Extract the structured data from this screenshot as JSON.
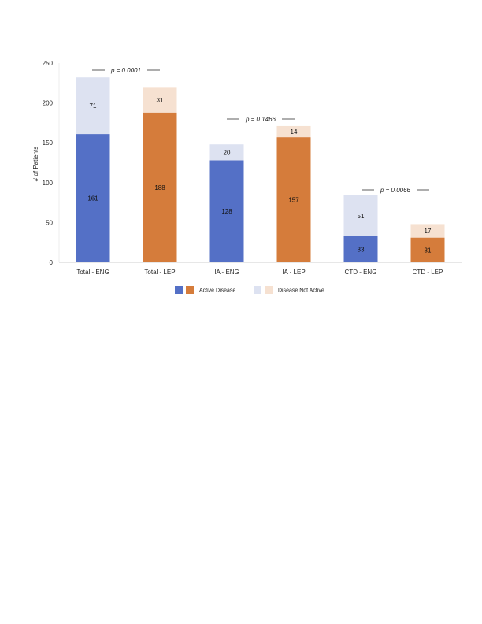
{
  "chart_data": {
    "type": "bar",
    "stacked": true,
    "categories": [
      "Total - ENG",
      "Total - LEP",
      "IA - ENG",
      "IA - LEP",
      "CTD - ENG",
      "CTD - LEP"
    ],
    "series": [
      {
        "name": "Active Disease",
        "values": [
          161,
          188,
          128,
          157,
          33,
          31
        ]
      },
      {
        "name": "Disease Not Active",
        "values": [
          71,
          31,
          20,
          14,
          51,
          17
        ]
      }
    ],
    "ylabel": "# of Patients",
    "ylim": [
      0,
      250
    ],
    "yticks": [
      0,
      50,
      100,
      150,
      200,
      250
    ],
    "grid": false,
    "legend_position": "bottom",
    "annotations": [
      {
        "text": "p = 0.0001",
        "between": [
          "Total - ENG",
          "Total - LEP"
        ]
      },
      {
        "text": "p = 0.1466",
        "between": [
          "IA - ENG",
          "IA - LEP"
        ]
      },
      {
        "text": "p = 0.0066",
        "between": [
          "CTD - ENG",
          "CTD - LEP"
        ]
      }
    ]
  },
  "colors": {
    "eng_active": "#5470c6",
    "lep_active": "#d57c3b",
    "eng_inactive": "#dde2f1",
    "lep_inactive": "#f6e1d1",
    "axis": "#bfbfbf"
  }
}
